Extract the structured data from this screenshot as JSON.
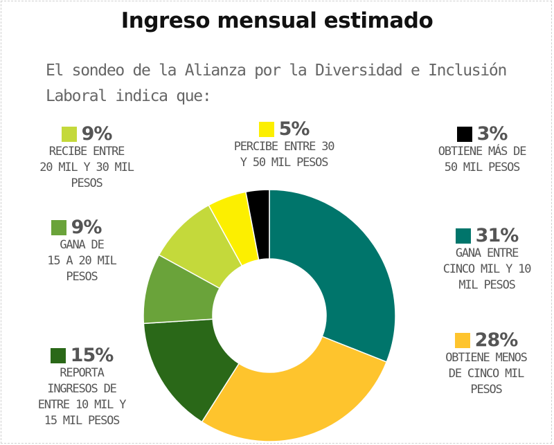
{
  "header": {
    "title": "Ingreso mensual estimado",
    "subtitle_line1": "El sondeo de la Alianza por la Diversidad e Inclusión",
    "subtitle_line2": "Laboral indica que:"
  },
  "chart_data": {
    "type": "pie",
    "donut": true,
    "categories": [
      "GANA ENTRE CINCO MIL Y 10 MIL PESOS",
      "OBTIENE MENOS DE CINCO MIL PESOS",
      "REPORTA INGRESOS DE ENTRE 10 MIL Y 15 MIL PESOS",
      "GANA DE 15 A 20 MIL PESOS",
      "RECIBE ENTRE 20 MIL Y 30 MIL PESOS",
      "PERCIBE ENTRE 30 Y 50 MIL PESOS",
      "OBTIENE MÁS DE 50 MIL PESOS"
    ],
    "values": [
      31,
      28,
      15,
      9,
      9,
      5,
      3
    ],
    "colors": [
      "#00756b",
      "#fec42d",
      "#2a6818",
      "#6aa33a",
      "#c4d93b",
      "#fcef00",
      "#000000"
    ]
  },
  "labels": [
    {
      "pct": "31%",
      "desc": "GANA ENTRE\nCINCO MIL Y 10\nMIL PESOS",
      "color": "#00756b"
    },
    {
      "pct": "28%",
      "desc": "OBTIENE MENOS\nDE CINCO MIL\nPESOS",
      "color": "#fec42d"
    },
    {
      "pct": "15%",
      "desc": "REPORTA\nINGRESOS DE\nENTRE 10 MIL Y\n15 MIL PESOS",
      "color": "#2a6818"
    },
    {
      "pct": "9%",
      "desc": "GANA DE\n15 A 20 MIL\nPESOS",
      "color": "#6aa33a"
    },
    {
      "pct": "9%",
      "desc": "RECIBE ENTRE\n20 MIL Y 30 MIL\nPESOS",
      "color": "#c4d93b"
    },
    {
      "pct": "5%",
      "desc": "PERCIBE ENTRE 30\nY 50 MIL PESOS",
      "color": "#fcef00"
    },
    {
      "pct": "3%",
      "desc": "OBTIENE MÁS DE\n50 MIL PESOS",
      "color": "#000000"
    }
  ]
}
